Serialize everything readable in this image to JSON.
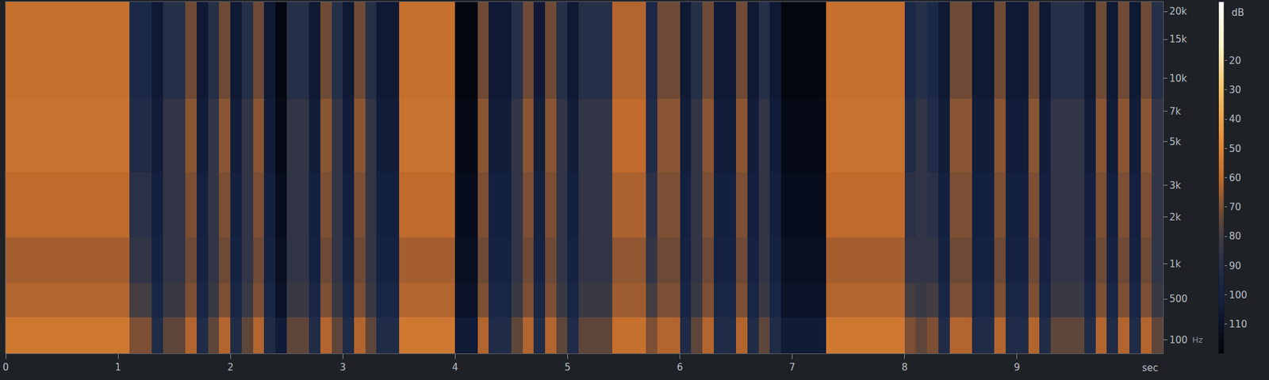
{
  "chart_data": {
    "type": "heatmap",
    "x_label": "sec",
    "y_label": "Hz",
    "x_bins": [
      0,
      0.1,
      0.2,
      0.3,
      0.4,
      0.5,
      0.6,
      0.7,
      0.8,
      0.9,
      1.0,
      1.1,
      1.2,
      1.3,
      1.4,
      1.5,
      1.6,
      1.7,
      1.8,
      1.9,
      2.0,
      2.1,
      2.2,
      2.3,
      2.4,
      2.5,
      2.6,
      2.7,
      2.8,
      2.9,
      3.0,
      3.1,
      3.2,
      3.3,
      3.4,
      3.5,
      3.6,
      3.7,
      3.8,
      3.9,
      4.0,
      4.1,
      4.2,
      4.3,
      4.4,
      4.5,
      4.6,
      4.7,
      4.8,
      4.9,
      5.0,
      5.1,
      5.2,
      5.3,
      5.4,
      5.5,
      5.6,
      5.7,
      5.8,
      5.9,
      6.0,
      6.1,
      6.2,
      6.3,
      6.4,
      6.5,
      6.6,
      6.7,
      6.8,
      6.9,
      7.0,
      7.1,
      7.2,
      7.3,
      7.4,
      7.5,
      7.6,
      7.7,
      7.8,
      7.9,
      8.0,
      8.1,
      8.2,
      8.3,
      8.4,
      8.5,
      8.6,
      8.7,
      8.8,
      8.9,
      9.0,
      9.1,
      9.2,
      9.3,
      9.4,
      9.5,
      9.6,
      9.7,
      9.8,
      9.9,
      10.0,
      10.1,
      10.2,
      10.3
    ],
    "y_bins": [
      0,
      300,
      700,
      1500,
      3500,
      8000,
      22050
    ],
    "cells": [
      [
        55,
        55,
        55,
        55,
        55,
        55,
        55,
        55,
        55,
        55,
        55,
        70,
        70,
        92,
        75,
        75,
        62,
        92,
        75,
        62,
        92,
        75,
        62,
        92,
        105,
        75,
        75,
        92,
        62,
        75,
        92,
        62,
        75,
        92,
        92,
        55,
        55,
        55,
        55,
        55,
        105,
        105,
        62,
        92,
        92,
        75,
        62,
        92,
        62,
        75,
        92,
        75,
        75,
        75,
        58,
        58,
        58,
        70,
        62,
        62,
        92,
        75,
        62,
        92,
        92,
        62,
        92,
        75,
        92,
        105,
        105,
        105,
        105,
        55,
        55,
        55,
        55,
        55,
        55,
        55,
        70,
        75,
        70,
        92,
        62,
        62,
        92,
        92,
        62,
        92,
        92,
        62,
        92,
        75,
        75,
        75,
        92,
        62,
        92,
        62,
        92,
        62,
        75
      ],
      [
        62,
        62,
        62,
        62,
        62,
        62,
        62,
        62,
        62,
        62,
        62,
        80,
        80,
        98,
        82,
        82,
        70,
        98,
        82,
        70,
        98,
        82,
        70,
        98,
        110,
        82,
        82,
        98,
        70,
        82,
        98,
        70,
        82,
        98,
        98,
        62,
        62,
        62,
        62,
        62,
        110,
        110,
        70,
        98,
        98,
        82,
        70,
        98,
        70,
        82,
        98,
        82,
        82,
        82,
        65,
        65,
        65,
        80,
        70,
        70,
        98,
        82,
        70,
        98,
        98,
        70,
        98,
        82,
        98,
        110,
        110,
        110,
        110,
        62,
        62,
        62,
        62,
        62,
        62,
        62,
        80,
        82,
        80,
        98,
        70,
        70,
        98,
        98,
        70,
        98,
        98,
        70,
        98,
        82,
        82,
        82,
        98,
        70,
        98,
        70,
        98,
        70,
        82
      ],
      [
        64,
        64,
        64,
        64,
        64,
        64,
        64,
        64,
        64,
        64,
        64,
        85,
        85,
        100,
        85,
        85,
        72,
        100,
        85,
        72,
        100,
        85,
        72,
        100,
        112,
        85,
        85,
        100,
        72,
        85,
        100,
        72,
        85,
        100,
        100,
        64,
        64,
        64,
        64,
        64,
        112,
        112,
        72,
        100,
        100,
        85,
        72,
        100,
        72,
        85,
        100,
        85,
        85,
        85,
        67,
        67,
        67,
        85,
        72,
        72,
        100,
        85,
        72,
        100,
        100,
        72,
        100,
        85,
        100,
        112,
        112,
        112,
        112,
        64,
        64,
        64,
        64,
        64,
        64,
        64,
        85,
        85,
        85,
        100,
        72,
        72,
        100,
        100,
        72,
        100,
        100,
        72,
        100,
        85,
        85,
        85,
        100,
        72,
        100,
        72,
        100,
        72,
        85
      ],
      [
        60,
        60,
        60,
        60,
        60,
        60,
        60,
        60,
        60,
        60,
        60,
        88,
        88,
        102,
        85,
        85,
        70,
        102,
        85,
        70,
        102,
        85,
        70,
        102,
        114,
        85,
        85,
        102,
        70,
        85,
        102,
        70,
        85,
        102,
        102,
        60,
        60,
        60,
        60,
        60,
        114,
        114,
        70,
        102,
        102,
        85,
        70,
        102,
        70,
        85,
        102,
        85,
        85,
        85,
        63,
        63,
        63,
        88,
        70,
        70,
        102,
        85,
        70,
        102,
        102,
        70,
        102,
        85,
        102,
        114,
        114,
        114,
        114,
        60,
        60,
        60,
        60,
        60,
        60,
        60,
        88,
        85,
        88,
        102,
        70,
        70,
        102,
        102,
        70,
        102,
        102,
        70,
        102,
        85,
        85,
        85,
        102,
        70,
        102,
        70,
        102,
        70,
        85
      ],
      [
        57,
        57,
        57,
        57,
        57,
        57,
        57,
        57,
        57,
        57,
        57,
        92,
        92,
        104,
        85,
        85,
        68,
        104,
        85,
        68,
        104,
        85,
        68,
        104,
        116,
        85,
        85,
        104,
        68,
        85,
        104,
        68,
        85,
        104,
        104,
        57,
        57,
        57,
        57,
        57,
        116,
        116,
        68,
        104,
        104,
        85,
        68,
        104,
        68,
        85,
        104,
        85,
        85,
        85,
        60,
        60,
        60,
        92,
        68,
        68,
        104,
        85,
        68,
        104,
        104,
        68,
        104,
        85,
        104,
        116,
        116,
        116,
        116,
        57,
        57,
        57,
        57,
        57,
        57,
        57,
        92,
        85,
        92,
        104,
        68,
        68,
        104,
        104,
        68,
        104,
        104,
        68,
        104,
        85,
        85,
        85,
        104,
        68,
        104,
        68,
        104,
        68,
        85
      ],
      [
        58,
        58,
        58,
        58,
        58,
        58,
        58,
        58,
        58,
        58,
        58,
        95,
        95,
        106,
        90,
        90,
        72,
        106,
        90,
        72,
        106,
        90,
        72,
        106,
        118,
        90,
        90,
        106,
        72,
        90,
        106,
        72,
        90,
        106,
        106,
        58,
        58,
        58,
        58,
        58,
        118,
        118,
        72,
        106,
        106,
        90,
        72,
        106,
        72,
        90,
        106,
        90,
        90,
        90,
        62,
        62,
        62,
        95,
        72,
        72,
        106,
        90,
        72,
        106,
        106,
        72,
        106,
        90,
        106,
        118,
        118,
        118,
        118,
        58,
        58,
        58,
        58,
        58,
        58,
        58,
        95,
        90,
        95,
        106,
        72,
        72,
        106,
        106,
        72,
        106,
        106,
        72,
        106,
        90,
        90,
        90,
        106,
        72,
        106,
        72,
        106,
        72,
        90
      ]
    ],
    "xlim": [
      0,
      10.3
    ],
    "xticks": [
      0,
      1,
      2,
      3,
      4,
      5,
      6,
      7,
      8,
      9
    ],
    "ylim": [
      0,
      22050
    ],
    "yticks": [
      100,
      500,
      {
        "value": 1000,
        "label": "1k"
      },
      {
        "value": 2000,
        "label": "2k"
      },
      {
        "value": 3000,
        "label": "3k"
      },
      {
        "value": 5000,
        "label": "5k"
      },
      {
        "value": 7000,
        "label": "7k"
      },
      {
        "value": 10000,
        "label": "10k"
      },
      {
        "value": 15000,
        "label": "15k"
      },
      {
        "value": 20000,
        "label": "20k"
      }
    ],
    "colorbar": {
      "label": "dB",
      "range": [
        0,
        120
      ],
      "ticks": [
        20,
        30,
        40,
        50,
        60,
        70,
        80,
        90,
        100,
        110
      ]
    },
    "grid": false
  }
}
